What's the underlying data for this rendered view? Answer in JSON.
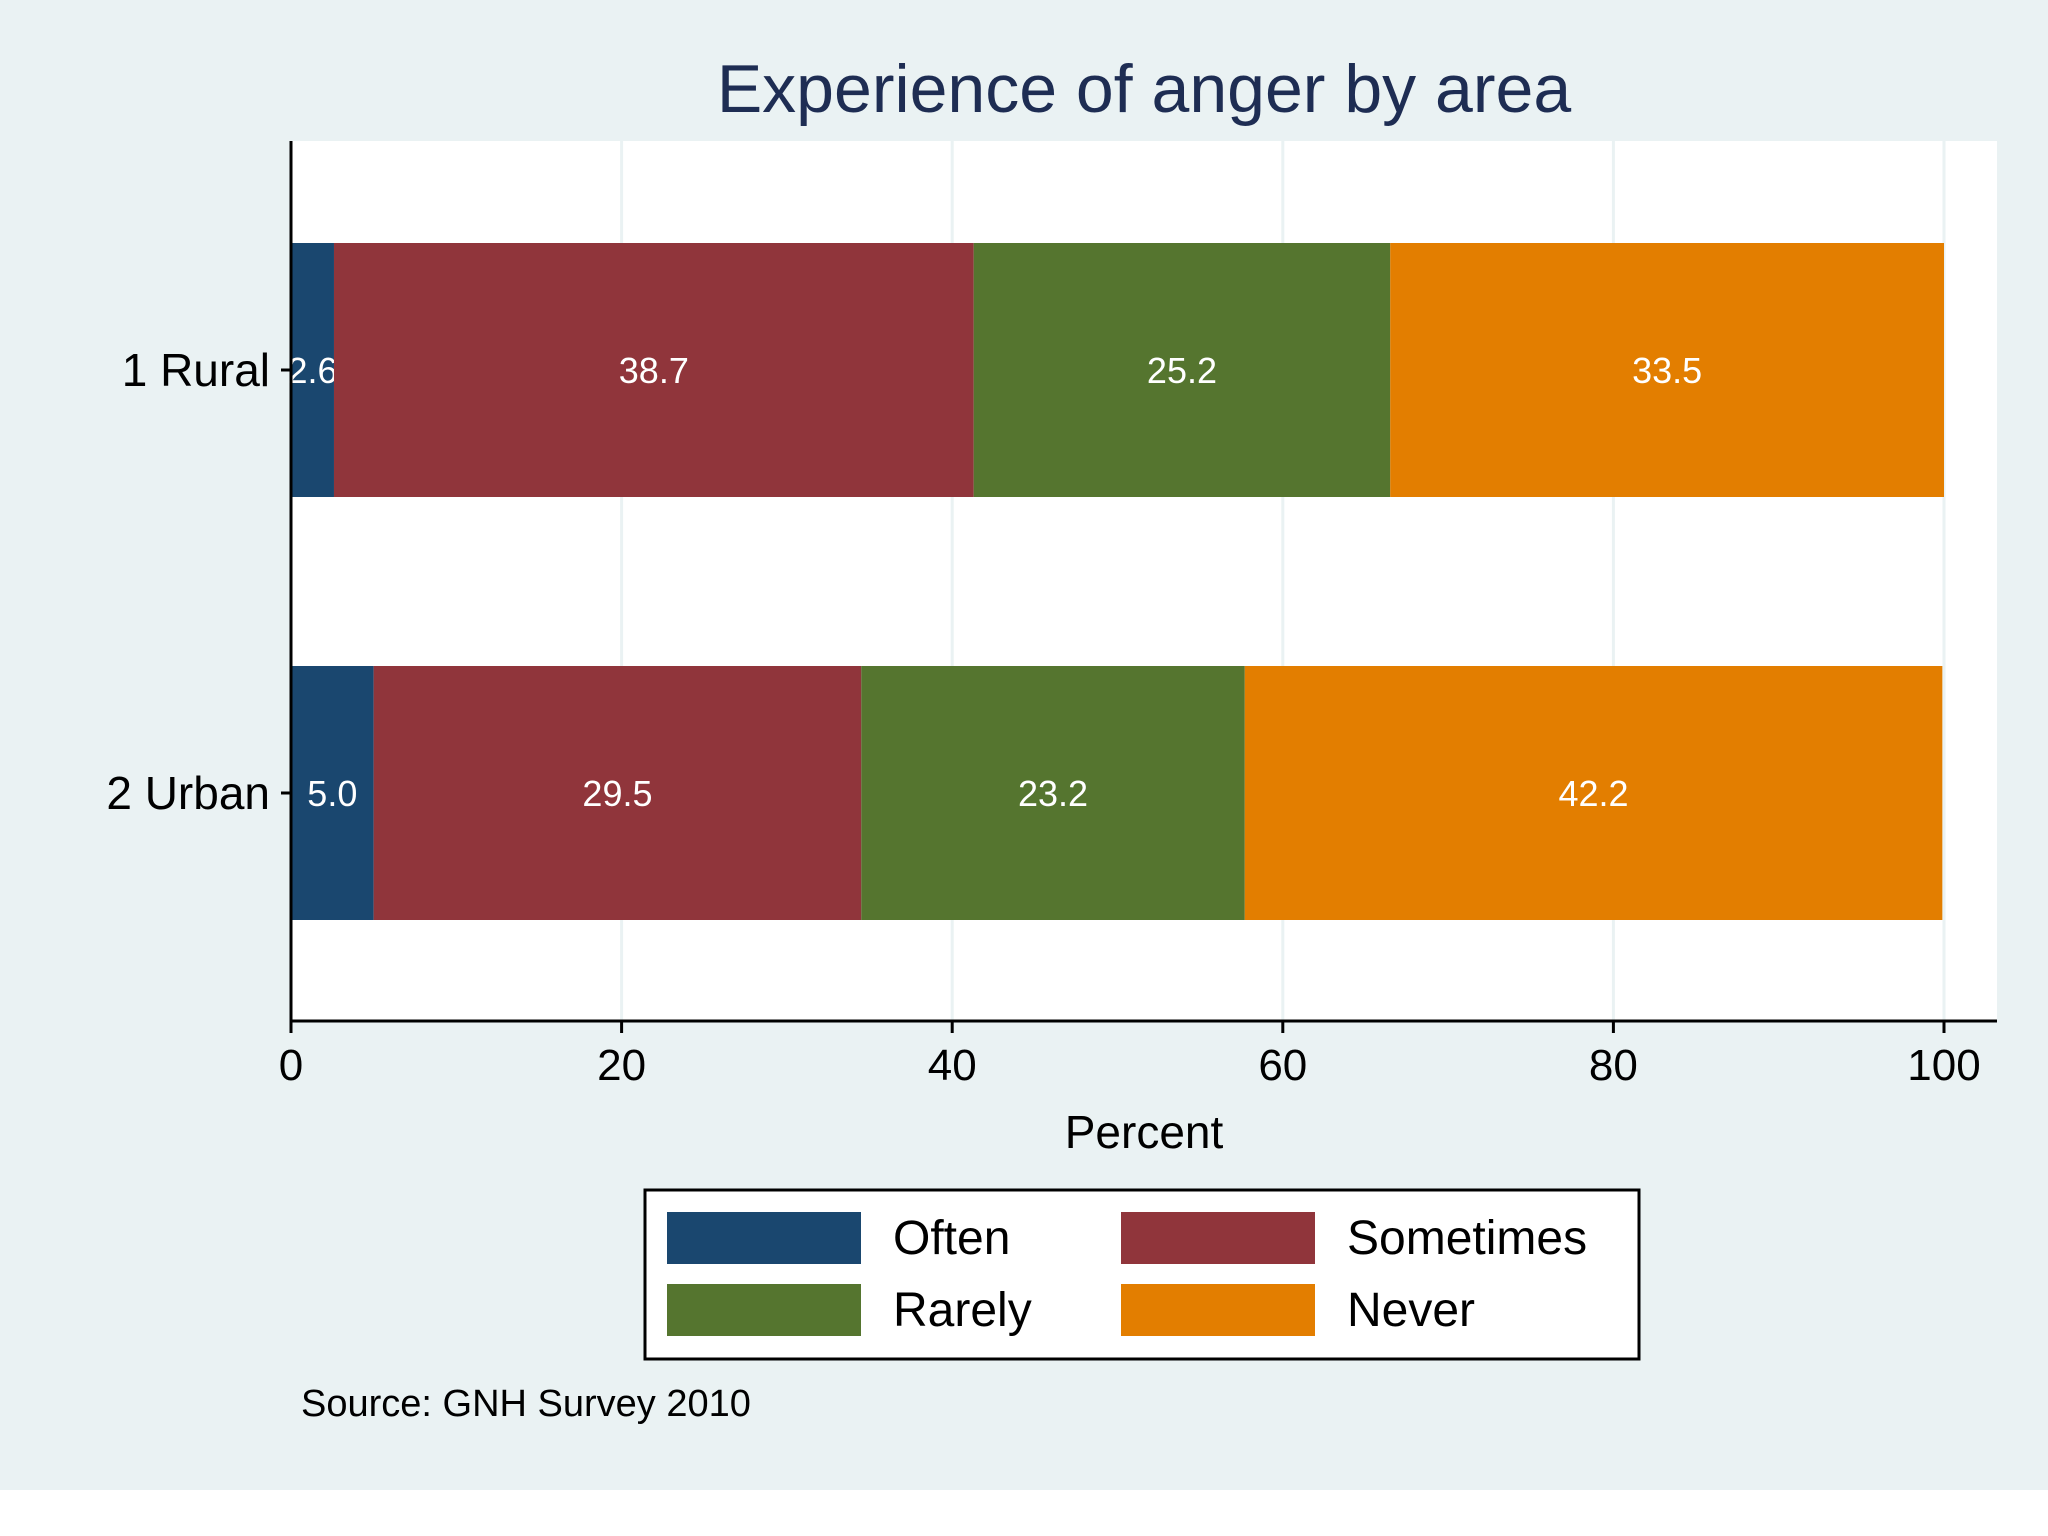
{
  "chart_data": {
    "type": "bar",
    "orientation": "horizontal",
    "stacked": true,
    "title": "Experience of anger by area",
    "xlabel": "Percent",
    "ylabel": "",
    "xlim": [
      0,
      100
    ],
    "xticks": [
      0,
      20,
      40,
      60,
      80,
      100
    ],
    "categories": [
      "1 Rural",
      "2 Urban"
    ],
    "series": [
      {
        "name": "Often",
        "color": "#1a476f",
        "values": [
          2.6,
          5.0
        ]
      },
      {
        "name": "Sometimes",
        "color": "#90353b",
        "values": [
          38.7,
          29.5
        ]
      },
      {
        "name": "Rarely",
        "color": "#55752f",
        "values": [
          25.2,
          23.2
        ]
      },
      {
        "name": "Never",
        "color": "#e37e00",
        "values": [
          33.5,
          42.2
        ]
      }
    ],
    "value_labels": [
      [
        "2.6",
        "38.7",
        "25.2",
        "33.5"
      ],
      [
        "5.0",
        "29.5",
        "23.2",
        "42.2"
      ]
    ],
    "grid": true,
    "legend_position": "bottom",
    "note": "Source: GNH Survey 2010",
    "colors": {
      "background": "#eaf2f3",
      "plot_background": "#ffffff",
      "grid": "#eaf2f3",
      "title": "#1e2d53",
      "text": "#000000",
      "value_label": "#ffffff"
    }
  }
}
